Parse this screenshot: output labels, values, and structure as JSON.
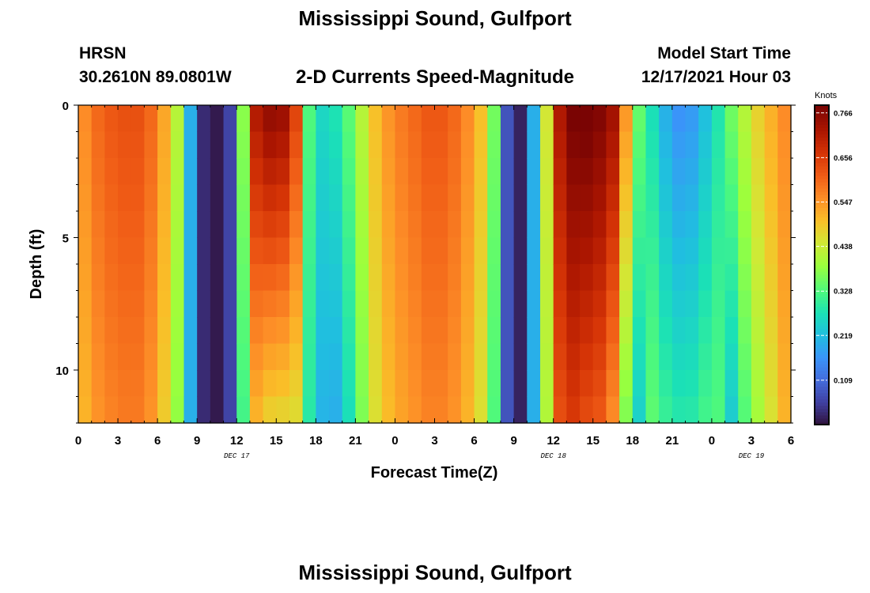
{
  "page": {
    "title": "Mississippi Sound, Gulfport",
    "station_code": "HRSN",
    "coordinates": "30.2610N  89.0801W",
    "subtitle": "2-D Currents Speed-Magnitude",
    "model_start_label": "Model Start Time",
    "model_start_value": "12/17/2021 Hour 03",
    "footer_title": "Mississippi Sound, Gulfport"
  },
  "chart_data": {
    "type": "heatmap",
    "title": "2-D Currents Speed-Magnitude",
    "xlabel": "Forecast Time(Z)",
    "ylabel": "Depth (ft)",
    "x_range_hours": [
      0,
      54
    ],
    "x_ticks": [
      {
        "hour": 0,
        "label": "0"
      },
      {
        "hour": 3,
        "label": "3"
      },
      {
        "hour": 6,
        "label": "6"
      },
      {
        "hour": 9,
        "label": "9"
      },
      {
        "hour": 12,
        "label": "12"
      },
      {
        "hour": 15,
        "label": "15"
      },
      {
        "hour": 18,
        "label": "18"
      },
      {
        "hour": 21,
        "label": "21"
      },
      {
        "hour": 24,
        "label": "0"
      },
      {
        "hour": 27,
        "label": "3"
      },
      {
        "hour": 30,
        "label": "6"
      },
      {
        "hour": 33,
        "label": "9"
      },
      {
        "hour": 36,
        "label": "12"
      },
      {
        "hour": 39,
        "label": "15"
      },
      {
        "hour": 42,
        "label": "18"
      },
      {
        "hour": 45,
        "label": "21"
      },
      {
        "hour": 48,
        "label": "0"
      },
      {
        "hour": 51,
        "label": "3"
      },
      {
        "hour": 54,
        "label": "6"
      }
    ],
    "date_labels": [
      {
        "hour": 12,
        "label": "DEC 17"
      },
      {
        "hour": 36,
        "label": "DEC 18"
      },
      {
        "hour": 51,
        "label": "DEC 19"
      }
    ],
    "y_range_ft": [
      0,
      12
    ],
    "y_ticks": [
      {
        "value": 0,
        "label": "0"
      },
      {
        "value": 5,
        "label": "5"
      },
      {
        "value": 10,
        "label": "10"
      }
    ],
    "colorbar": {
      "unit": "Knots",
      "min": 0.0,
      "max": 0.785,
      "ticks": [
        0.766,
        0.656,
        0.547,
        0.438,
        0.328,
        0.219,
        0.109
      ],
      "tick_labels": [
        "0.766",
        "0.656",
        "0.547",
        "0.438",
        "0.328",
        "0.219",
        "0.109"
      ]
    },
    "grid": {
      "time_step_hours": 1,
      "depth_levels_ft": [
        0.5,
        1.5,
        2.5,
        3.5,
        4.5,
        5.5,
        6.5,
        7.5,
        8.5,
        9.5,
        10.5,
        11.5
      ],
      "model": "surface speed (knots) per hour with depth-dependent shape factor (1 = depth-uniform, 0 = full decay to ~0.6x at bottom, negative = speed increases with depth); values estimated from colormap",
      "surface_speed_knots": [
        0.56,
        0.6,
        0.62,
        0.63,
        0.63,
        0.6,
        0.53,
        0.42,
        0.2,
        0.03,
        0.01,
        0.06,
        0.38,
        0.72,
        0.76,
        0.75,
        0.65,
        0.33,
        0.26,
        0.28,
        0.34,
        0.42,
        0.5,
        0.55,
        0.58,
        0.6,
        0.62,
        0.62,
        0.6,
        0.56,
        0.5,
        0.36,
        0.08,
        0.02,
        0.2,
        0.45,
        0.72,
        0.79,
        0.8,
        0.78,
        0.74,
        0.55,
        0.35,
        0.27,
        0.2,
        0.16,
        0.17,
        0.22,
        0.28,
        0.36,
        0.42,
        0.48,
        0.52,
        0.56
      ],
      "depth_shape_factor": [
        0.8,
        0.8,
        0.8,
        0.8,
        0.8,
        0.8,
        0.8,
        0.8,
        1,
        1,
        1,
        1,
        0.6,
        0.3,
        0.1,
        0.1,
        0.3,
        0.7,
        0.5,
        0.3,
        0.5,
        0.7,
        0.8,
        0.8,
        0.8,
        0.8,
        0.8,
        0.8,
        0.8,
        0.8,
        0.8,
        0.8,
        1,
        1,
        1,
        0.8,
        0.7,
        0.6,
        0.5,
        0.5,
        0.4,
        0.2,
        0.3,
        -0.3,
        -0.6,
        -0.9,
        -0.8,
        -0.5,
        -0.2,
        0.2,
        0.5,
        0.6,
        0.7,
        0.8
      ]
    }
  }
}
